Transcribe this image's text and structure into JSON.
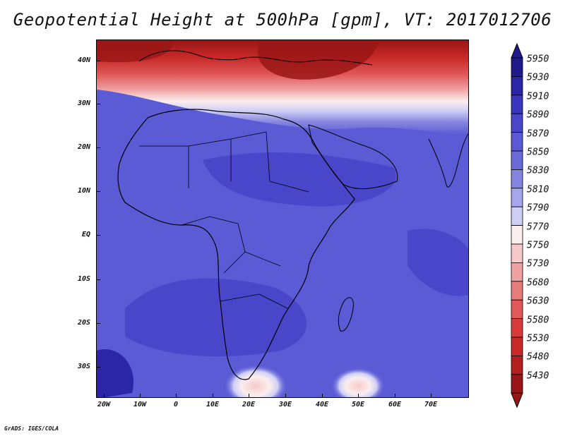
{
  "title": "Geopotential Height at 500hPa [gpm], VT: 2017012706",
  "credit": "GrADS: IGES/COLA",
  "map": {
    "lat_labels": [
      "40N",
      "30N",
      "20N",
      "10N",
      "EQ",
      "10S",
      "20S",
      "30S"
    ],
    "lon_labels": [
      "20W",
      "10W",
      "0",
      "10E",
      "20E",
      "30E",
      "40E",
      "50E",
      "60E",
      "70E"
    ],
    "lat_range": [
      -37,
      44
    ],
    "lon_range": [
      -23,
      80
    ],
    "variable": "500hPa geopotential height",
    "units": "gpm",
    "valid_time": "2017012706",
    "land_color": "#5b5bd6"
  },
  "colorbar": {
    "levels": [
      "5950",
      "5930",
      "5910",
      "5890",
      "5870",
      "5850",
      "5830",
      "5810",
      "5790",
      "5770",
      "5750",
      "5730",
      "5680",
      "5630",
      "5580",
      "5530",
      "5480",
      "5430"
    ],
    "colors": [
      "#1f1a8c",
      "#2b25a8",
      "#3a35bd",
      "#4a46c9",
      "#5a58d2",
      "#6b6ad9",
      "#8585e0",
      "#a6a6ea",
      "#cfcff5",
      "#fbeeee",
      "#f6caca",
      "#f0a2a2",
      "#e97c7c",
      "#e05858",
      "#d73b3b",
      "#c82828",
      "#b31f1f",
      "#9a1616"
    ],
    "top_arrow_color": "#1f1a8c",
    "bottom_arrow_color": "#9a1616"
  }
}
